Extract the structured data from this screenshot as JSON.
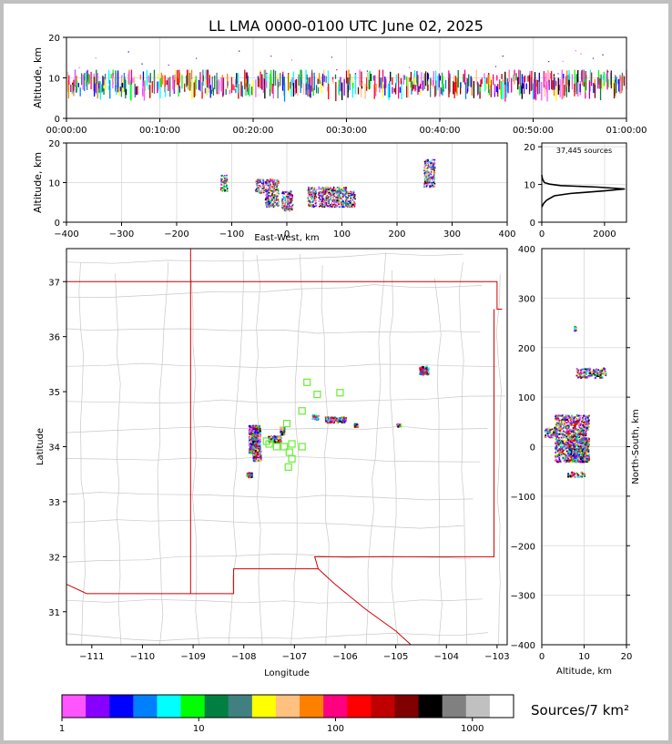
{
  "chart_data": {
    "title": "LL LMA 0000-0100 UTC June 02, 2025",
    "panels": [
      {
        "id": "time-altitude",
        "type": "scatter",
        "ylabel": "Altitude, km",
        "xticks": [
          "00:00:00",
          "00:10:00",
          "00:20:00",
          "00:30:00",
          "00:40:00",
          "00:50:00",
          "01:00:00"
        ],
        "xlim_minutes": [
          0,
          60
        ],
        "ylim": [
          0,
          20
        ],
        "yticks": [
          0,
          10,
          20
        ],
        "altitude_band_km": [
          3,
          12
        ],
        "altitude_peak_km": 8.5
      },
      {
        "id": "eastwest-altitude",
        "type": "scatter",
        "xlabel": "East-West, km",
        "ylabel": "Altitude, km",
        "xlim": [
          -400,
          400
        ],
        "xticks": [
          -400,
          -300,
          -200,
          -100,
          0,
          100,
          200,
          300,
          400
        ],
        "ylim": [
          0,
          20
        ],
        "yticks": [
          0,
          10,
          20
        ],
        "clusters": [
          {
            "x": -115,
            "w": 6,
            "y0": 8,
            "y1": 12
          },
          {
            "x": -50,
            "w": 8,
            "y0": 7.5,
            "y1": 11
          },
          {
            "x": -28,
            "w": 12,
            "y0": 4,
            "y1": 11
          },
          {
            "x": 0,
            "w": 10,
            "y0": 3,
            "y1": 8
          },
          {
            "x": 45,
            "w": 8,
            "y0": 4,
            "y1": 9
          },
          {
            "x": 70,
            "w": 14,
            "y0": 4,
            "y1": 9
          },
          {
            "x": 95,
            "w": 12,
            "y0": 4,
            "y1": 9
          },
          {
            "x": 115,
            "w": 8,
            "y0": 4,
            "y1": 8
          },
          {
            "x": 258,
            "w": 10,
            "y0": 9,
            "y1": 16
          }
        ]
      },
      {
        "id": "altitude-histogram",
        "type": "line",
        "annotation": "37,445 sources",
        "xlim": [
          0,
          2700
        ],
        "xticks": [
          0,
          2000
        ],
        "ylim": [
          0,
          21
        ],
        "yticks": [
          0,
          10,
          20
        ],
        "profile": [
          [
            0,
            4
          ],
          [
            60,
            5
          ],
          [
            150,
            5.8
          ],
          [
            250,
            6.3
          ],
          [
            400,
            7
          ],
          [
            900,
            7.6
          ],
          [
            2000,
            8.3
          ],
          [
            2650,
            8.8
          ],
          [
            1800,
            9.3
          ],
          [
            600,
            9.7
          ],
          [
            250,
            10.1
          ],
          [
            80,
            10.5
          ],
          [
            20,
            11.5
          ],
          [
            0,
            12.5
          ]
        ]
      },
      {
        "id": "plan-view",
        "type": "scatter",
        "xlabel": "Longitude",
        "ylabel": "Latitude",
        "xlim": [
          -111.5,
          -102.8
        ],
        "ylim": [
          30.4,
          37.6
        ],
        "xticks": [
          -111,
          -110,
          -109,
          -108,
          -107,
          -106,
          -105,
          -104,
          -103
        ],
        "yticks": [
          31,
          32,
          33,
          34,
          35,
          36,
          37
        ],
        "source_clusters": [
          {
            "lon": -107.8,
            "lat": 34.15,
            "w": 0.22,
            "h": 0.5
          },
          {
            "lon": -107.75,
            "lat": 33.85,
            "w": 0.15,
            "h": 0.2
          },
          {
            "lon": -107.4,
            "lat": 34.15,
            "w": 0.25,
            "h": 0.12
          },
          {
            "lon": -107.25,
            "lat": 34.3,
            "w": 0.08,
            "h": 0.15
          },
          {
            "lon": -106.2,
            "lat": 34.5,
            "w": 0.4,
            "h": 0.1
          },
          {
            "lon": -106.6,
            "lat": 34.55,
            "w": 0.12,
            "h": 0.08
          },
          {
            "lon": -104.45,
            "lat": 35.4,
            "w": 0.18,
            "h": 0.15
          },
          {
            "lon": -107.9,
            "lat": 33.5,
            "w": 0.1,
            "h": 0.08
          },
          {
            "lon": -105.8,
            "lat": 34.4,
            "w": 0.08,
            "h": 0.06
          },
          {
            "lon": -104.95,
            "lat": 34.4,
            "w": 0.1,
            "h": 0.05
          }
        ],
        "stations": [
          [
            -106.75,
            35.17
          ],
          [
            -106.55,
            34.95
          ],
          [
            -106.1,
            34.98
          ],
          [
            -106.85,
            34.65
          ],
          [
            -107.15,
            34.42
          ],
          [
            -107.5,
            34.05
          ],
          [
            -107.35,
            34.0
          ],
          [
            -107.2,
            34.0
          ],
          [
            -107.05,
            34.05
          ],
          [
            -107.1,
            33.9
          ],
          [
            -106.85,
            34.0
          ],
          [
            -107.05,
            33.78
          ],
          [
            -107.12,
            33.63
          ],
          [
            -107.55,
            34.1
          ]
        ]
      },
      {
        "id": "altitude-northsouth",
        "type": "scatter",
        "xlabel": "Altitude, km",
        "ylabel": "North-South, km",
        "xlim": [
          0,
          20
        ],
        "xticks": [
          0,
          10,
          20
        ],
        "ylim": [
          -400,
          400
        ],
        "yticks": [
          -400,
          -300,
          -200,
          -100,
          0,
          100,
          200,
          300,
          400
        ],
        "clusters": [
          {
            "x0": 3,
            "x1": 11,
            "y0": -30,
            "y1": 65
          },
          {
            "x0": 6,
            "x1": 11,
            "y0": -30,
            "y1": 20
          },
          {
            "x0": 6,
            "x1": 10,
            "y0": -60,
            "y1": -50
          },
          {
            "x0": 8,
            "x1": 15,
            "y0": 140,
            "y1": 160
          },
          {
            "x0": 7.5,
            "x1": 8,
            "y0": 235,
            "y1": 245
          },
          {
            "x0": 0.5,
            "x1": 3,
            "y0": 20,
            "y1": 40
          }
        ]
      }
    ],
    "colorbar": {
      "label": "Sources/7 km²",
      "tick_labels": [
        "1",
        "10",
        "100",
        "1000"
      ],
      "tick_values": [
        1,
        10,
        100,
        1000
      ],
      "range": [
        1,
        2000
      ],
      "colors": [
        "#ff55ff",
        "#8800ff",
        "#0000ff",
        "#0080ff",
        "#00ffff",
        "#00ff00",
        "#008040",
        "#408080",
        "#ffff00",
        "#ffc080",
        "#ff8000",
        "#ff0080",
        "#ff0000",
        "#c00000",
        "#800000",
        "#000000",
        "#808080",
        "#c0c0c0",
        "#ffffff"
      ]
    }
  }
}
